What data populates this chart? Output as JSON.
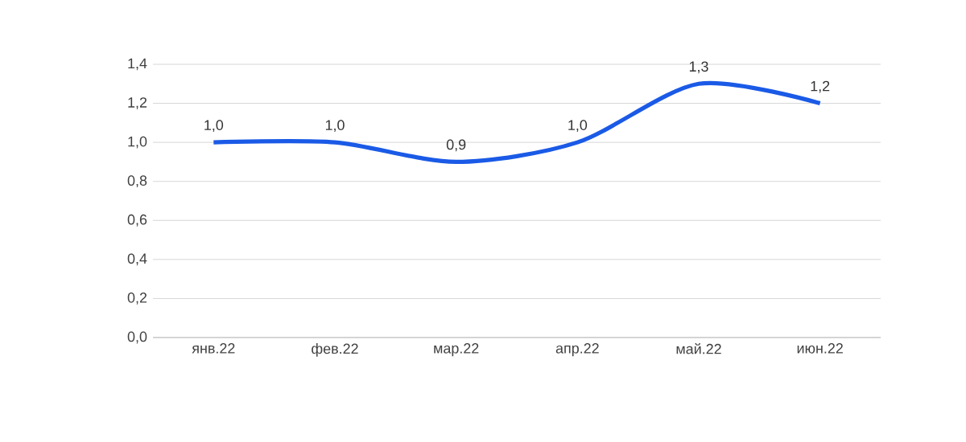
{
  "chart_data": {
    "type": "line",
    "categories": [
      "янв.22",
      "фев.22",
      "мар.22",
      "апр.22",
      "май.22",
      "июн.22"
    ],
    "values": [
      1.0,
      1.0,
      0.9,
      1.0,
      1.3,
      1.2
    ],
    "value_labels": [
      "1,0",
      "1,0",
      "0,9",
      "1,0",
      "1,3",
      "1,2"
    ],
    "color": "#1a5ae6",
    "ylim": [
      0,
      1.4
    ],
    "yticks": [
      {
        "value": 0,
        "label": "0,0"
      },
      {
        "value": 0.2,
        "label": "0,2"
      },
      {
        "value": 0.4,
        "label": "0,4"
      },
      {
        "value": 0.6,
        "label": "0,6"
      },
      {
        "value": 0.8,
        "label": "0,8"
      },
      {
        "value": 1.0,
        "label": "1,0"
      },
      {
        "value": 1.2,
        "label": "1,2"
      },
      {
        "value": 1.4,
        "label": "1,4"
      }
    ],
    "grid": "y",
    "line_style": "solid",
    "marker": "none"
  }
}
